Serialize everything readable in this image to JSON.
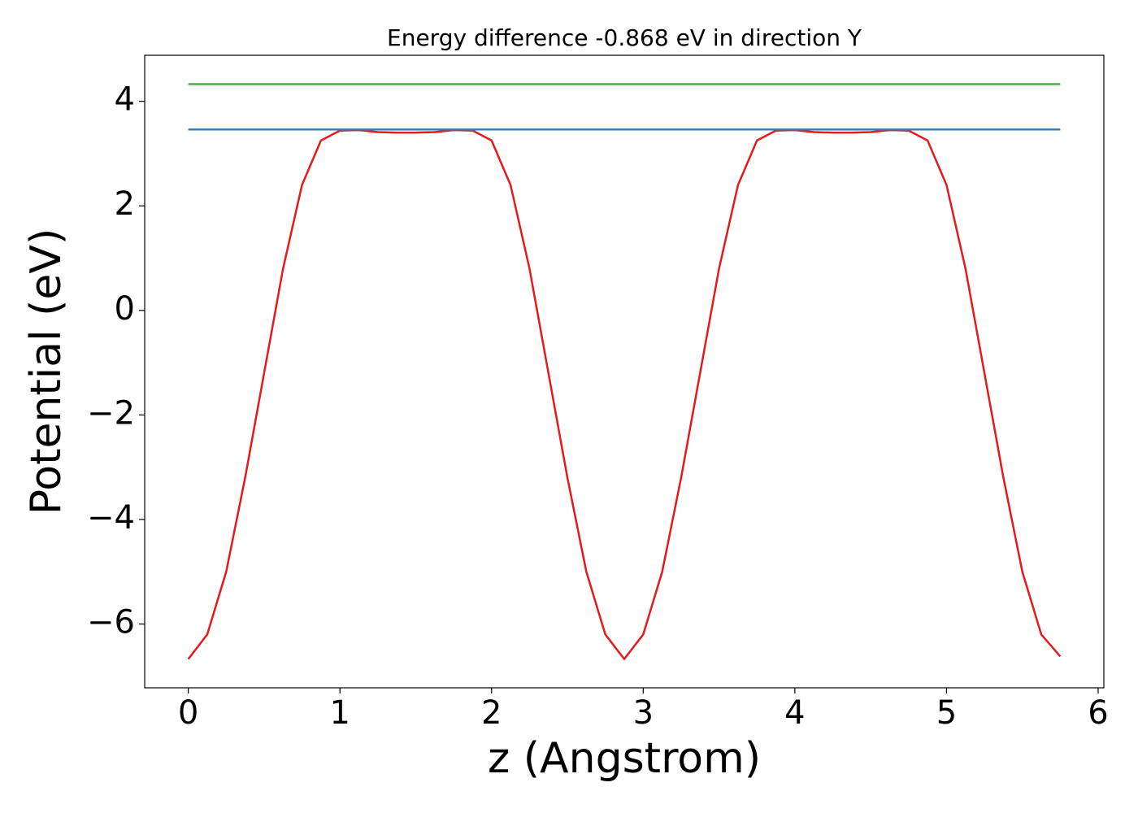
{
  "chart_data": {
    "type": "line",
    "title": "Energy difference -0.868 eV in direction Y",
    "x_label": "z (Angstrom)",
    "y_label": "Potential (eV)",
    "xlim": [
      -0.2875,
      6.0375
    ],
    "ylim": [
      -7.22,
      4.88
    ],
    "xticks": [
      0,
      1,
      2,
      3,
      4,
      5,
      6
    ],
    "yticks": [
      {
        "value": -6,
        "label": "−6"
      },
      {
        "value": -4,
        "label": "−4"
      },
      {
        "value": -2,
        "label": "−2"
      },
      0,
      2,
      4
    ],
    "series": [
      {
        "color": "#e41a1c",
        "x": [
          0,
          0.125,
          0.25,
          0.375,
          0.5,
          0.625,
          0.75,
          0.875,
          1,
          1.125,
          1.25,
          1.375,
          1.5,
          1.625,
          1.75,
          1.875,
          2,
          2.125,
          2.25,
          2.375,
          2.5,
          2.625,
          2.75,
          2.875,
          3,
          3.125,
          3.25,
          3.375,
          3.5,
          3.625,
          3.75,
          3.875,
          4,
          4.125,
          4.25,
          4.375,
          4.5,
          4.625,
          4.75,
          4.875,
          5,
          5.125,
          5.25,
          5.375,
          5.5,
          5.625,
          5.75
        ],
        "values": [
          -6.67,
          -6.2,
          -5.0,
          -3.2,
          -1.2,
          0.8,
          2.4,
          3.25,
          3.44,
          3.45,
          3.41,
          3.4,
          3.4,
          3.41,
          3.45,
          3.44,
          3.25,
          2.4,
          0.8,
          -1.2,
          -3.2,
          -5.0,
          -6.2,
          -6.67,
          -6.2,
          -5.0,
          -3.2,
          -1.2,
          0.8,
          2.4,
          3.25,
          3.44,
          3.45,
          3.41,
          3.4,
          3.4,
          3.41,
          3.45,
          3.44,
          3.25,
          2.4,
          0.8,
          -1.2,
          -3.2,
          -5.0,
          -6.2,
          -6.62
        ]
      },
      {
        "color": "#377eb8",
        "x": [
          0,
          5.75
        ],
        "values": [
          3.46,
          3.46
        ]
      },
      {
        "color": "#4daf4a",
        "x": [
          0,
          5.75
        ],
        "values": [
          4.328,
          4.328
        ]
      }
    ]
  }
}
